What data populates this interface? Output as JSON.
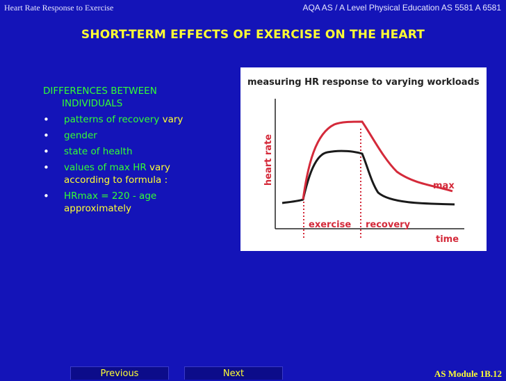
{
  "header": {
    "left": "Heart Rate Response to Exercise",
    "right": "AQA AS / A Level Physical Education AS 5581 A 6581"
  },
  "title": "SHORT-TERM EFFECTS OF EXERCISE ON THE HEART",
  "content": {
    "heading_line1": "DIFFERENCES BETWEEN",
    "heading_line2": "INDIVIDUALS",
    "bullet_char": "•",
    "b1_green": "patterns of recovery",
    "b1_yellow": "vary",
    "b2": "gender",
    "b3": "state of health",
    "b4_green": "values of max HR",
    "b4_yellow1": "vary",
    "b4_yellow2": "according to formula :",
    "b5": "HRmax = 220 - age",
    "b5_cont": "approximately"
  },
  "chart": {
    "title": "measuring HR response to varying workloads",
    "y_label": "heart rate",
    "x_label": "time",
    "phase_exercise": "exercise",
    "phase_recovery": "recovery",
    "max_label": "max",
    "colors": {
      "max_curve": "#d42a3a",
      "normal_curve": "#1a1a1a",
      "text": "#222222",
      "label_red": "#d42a3a"
    }
  },
  "nav": {
    "previous": "Previous",
    "next": "Next"
  },
  "footer": {
    "module": "AS Module 1B.12"
  }
}
